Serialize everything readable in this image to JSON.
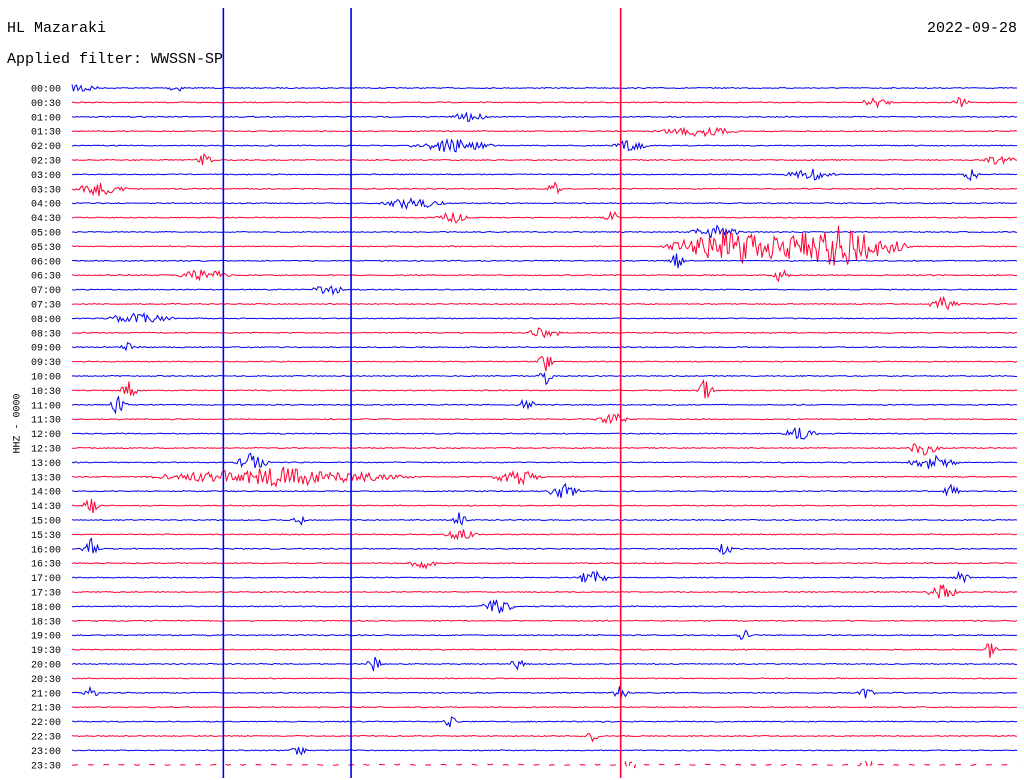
{
  "header": {
    "station": "HL Mazaraki",
    "filter": "Applied filter: WWSSN-SP",
    "date": "2022-09-28"
  },
  "chart_data": {
    "type": "line",
    "ylabel": "HHZ - 0000",
    "row_labels": [
      "00:00",
      "00:30",
      "01:00",
      "01:30",
      "02:00",
      "02:30",
      "03:00",
      "03:30",
      "04:00",
      "04:30",
      "05:00",
      "05:30",
      "06:00",
      "06:30",
      "07:00",
      "07:30",
      "08:00",
      "08:30",
      "09:00",
      "09:30",
      "10:00",
      "10:30",
      "11:00",
      "11:30",
      "12:00",
      "12:30",
      "13:00",
      "13:30",
      "14:00",
      "14:30",
      "15:00",
      "15:30",
      "16:00",
      "16:30",
      "17:00",
      "17:30",
      "18:00",
      "18:30",
      "19:00",
      "19:30",
      "20:00",
      "20:30",
      "21:00",
      "21:30",
      "22:00",
      "22:30",
      "23:00",
      "23:30"
    ],
    "colors": {
      "even_rows": "#0000ee",
      "odd_rows": "#ff0033"
    },
    "events": [
      {
        "row": 0,
        "pos": 0.01,
        "amp": 1.0,
        "dur": 0.02
      },
      {
        "row": 0,
        "pos": 0.11,
        "amp": 0.8,
        "dur": 0.01
      },
      {
        "row": 1,
        "pos": 0.85,
        "amp": 0.8,
        "dur": 0.02
      },
      {
        "row": 1,
        "pos": 0.94,
        "amp": 1.0,
        "dur": 0.01
      },
      {
        "row": 2,
        "pos": 0.42,
        "amp": 1.0,
        "dur": 0.02
      },
      {
        "row": 3,
        "pos": 0.66,
        "amp": 0.9,
        "dur": 0.05
      },
      {
        "row": 4,
        "pos": 0.4,
        "amp": 1.2,
        "dur": 0.05
      },
      {
        "row": 4,
        "pos": 0.59,
        "amp": 1.1,
        "dur": 0.02
      },
      {
        "row": 5,
        "pos": 0.14,
        "amp": 1.0,
        "dur": 0.01
      },
      {
        "row": 5,
        "pos": 0.98,
        "amp": 0.8,
        "dur": 0.02
      },
      {
        "row": 6,
        "pos": 0.78,
        "amp": 1.0,
        "dur": 0.03
      },
      {
        "row": 6,
        "pos": 0.95,
        "amp": 1.3,
        "dur": 0.01
      },
      {
        "row": 7,
        "pos": 0.03,
        "amp": 1.2,
        "dur": 0.03
      },
      {
        "row": 7,
        "pos": 0.51,
        "amp": 1.3,
        "dur": 0.01
      },
      {
        "row": 8,
        "pos": 0.36,
        "amp": 1.0,
        "dur": 0.04
      },
      {
        "row": 9,
        "pos": 0.4,
        "amp": 1.2,
        "dur": 0.02
      },
      {
        "row": 9,
        "pos": 0.57,
        "amp": 1.4,
        "dur": 0.01
      },
      {
        "row": 10,
        "pos": 0.68,
        "amp": 1.2,
        "dur": 0.03
      },
      {
        "row": 11,
        "pos": 0.7,
        "amp": 3.0,
        "dur": 0.08
      },
      {
        "row": 11,
        "pos": 0.81,
        "amp": 3.5,
        "dur": 0.08
      },
      {
        "row": 12,
        "pos": 0.64,
        "amp": 1.4,
        "dur": 0.01
      },
      {
        "row": 13,
        "pos": 0.14,
        "amp": 1.2,
        "dur": 0.03
      },
      {
        "row": 13,
        "pos": 0.75,
        "amp": 1.3,
        "dur": 0.01
      },
      {
        "row": 14,
        "pos": 0.27,
        "amp": 1.0,
        "dur": 0.02
      },
      {
        "row": 15,
        "pos": 0.92,
        "amp": 1.2,
        "dur": 0.02
      },
      {
        "row": 16,
        "pos": 0.07,
        "amp": 1.0,
        "dur": 0.04
      },
      {
        "row": 17,
        "pos": 0.5,
        "amp": 1.2,
        "dur": 0.02
      },
      {
        "row": 18,
        "pos": 0.06,
        "amp": 1.6,
        "dur": 0.01
      },
      {
        "row": 19,
        "pos": 0.5,
        "amp": 2.0,
        "dur": 0.01
      },
      {
        "row": 20,
        "pos": 0.5,
        "amp": 1.5,
        "dur": 0.01
      },
      {
        "row": 21,
        "pos": 0.06,
        "amp": 2.0,
        "dur": 0.01
      },
      {
        "row": 21,
        "pos": 0.67,
        "amp": 2.5,
        "dur": 0.01
      },
      {
        "row": 22,
        "pos": 0.05,
        "amp": 2.5,
        "dur": 0.01
      },
      {
        "row": 22,
        "pos": 0.48,
        "amp": 1.5,
        "dur": 0.01
      },
      {
        "row": 23,
        "pos": 0.57,
        "amp": 1.2,
        "dur": 0.02
      },
      {
        "row": 24,
        "pos": 0.77,
        "amp": 1.2,
        "dur": 0.02
      },
      {
        "row": 25,
        "pos": 0.9,
        "amp": 1.2,
        "dur": 0.02
      },
      {
        "row": 26,
        "pos": 0.19,
        "amp": 1.6,
        "dur": 0.02
      },
      {
        "row": 26,
        "pos": 0.91,
        "amp": 1.3,
        "dur": 0.03
      },
      {
        "row": 27,
        "pos": 0.22,
        "amp": 1.6,
        "dur": 0.15
      },
      {
        "row": 27,
        "pos": 0.47,
        "amp": 1.5,
        "dur": 0.03
      },
      {
        "row": 28,
        "pos": 0.52,
        "amp": 1.5,
        "dur": 0.02
      },
      {
        "row": 28,
        "pos": 0.93,
        "amp": 1.3,
        "dur": 0.01
      },
      {
        "row": 29,
        "pos": 0.02,
        "amp": 1.5,
        "dur": 0.01
      },
      {
        "row": 30,
        "pos": 0.24,
        "amp": 1.0,
        "dur": 0.01
      },
      {
        "row": 30,
        "pos": 0.41,
        "amp": 1.3,
        "dur": 0.01
      },
      {
        "row": 31,
        "pos": 0.41,
        "amp": 1.0,
        "dur": 0.02
      },
      {
        "row": 32,
        "pos": 0.02,
        "amp": 2.0,
        "dur": 0.01
      },
      {
        "row": 32,
        "pos": 0.69,
        "amp": 1.2,
        "dur": 0.01
      },
      {
        "row": 33,
        "pos": 0.37,
        "amp": 1.0,
        "dur": 0.02
      },
      {
        "row": 34,
        "pos": 0.55,
        "amp": 1.5,
        "dur": 0.02
      },
      {
        "row": 34,
        "pos": 0.94,
        "amp": 1.3,
        "dur": 0.01
      },
      {
        "row": 35,
        "pos": 0.92,
        "amp": 1.3,
        "dur": 0.02
      },
      {
        "row": 36,
        "pos": 0.45,
        "amp": 1.3,
        "dur": 0.02
      },
      {
        "row": 38,
        "pos": 0.71,
        "amp": 1.0,
        "dur": 0.01
      },
      {
        "row": 39,
        "pos": 0.97,
        "amp": 1.4,
        "dur": 0.01
      },
      {
        "row": 40,
        "pos": 0.32,
        "amp": 1.3,
        "dur": 0.01
      },
      {
        "row": 40,
        "pos": 0.47,
        "amp": 1.0,
        "dur": 0.01
      },
      {
        "row": 42,
        "pos": 0.02,
        "amp": 1.0,
        "dur": 0.01
      },
      {
        "row": 42,
        "pos": 0.58,
        "amp": 1.2,
        "dur": 0.01
      },
      {
        "row": 42,
        "pos": 0.84,
        "amp": 1.0,
        "dur": 0.01
      },
      {
        "row": 44,
        "pos": 0.4,
        "amp": 0.9,
        "dur": 0.01
      },
      {
        "row": 45,
        "pos": 0.55,
        "amp": 0.9,
        "dur": 0.01
      },
      {
        "row": 46,
        "pos": 0.24,
        "amp": 0.9,
        "dur": 0.01
      },
      {
        "row": 47,
        "pos": 0.59,
        "amp": 1.3,
        "dur": 0.01
      },
      {
        "row": 47,
        "pos": 0.84,
        "amp": 1.3,
        "dur": 0.01
      }
    ],
    "spikes": [
      {
        "row": 22,
        "pos": 0.16,
        "color": "#0000ee"
      },
      {
        "row": 23,
        "pos": 0.295,
        "color": "#0000ee"
      },
      {
        "row": 23,
        "pos": 0.58,
        "color": "#ff0033"
      }
    ]
  }
}
